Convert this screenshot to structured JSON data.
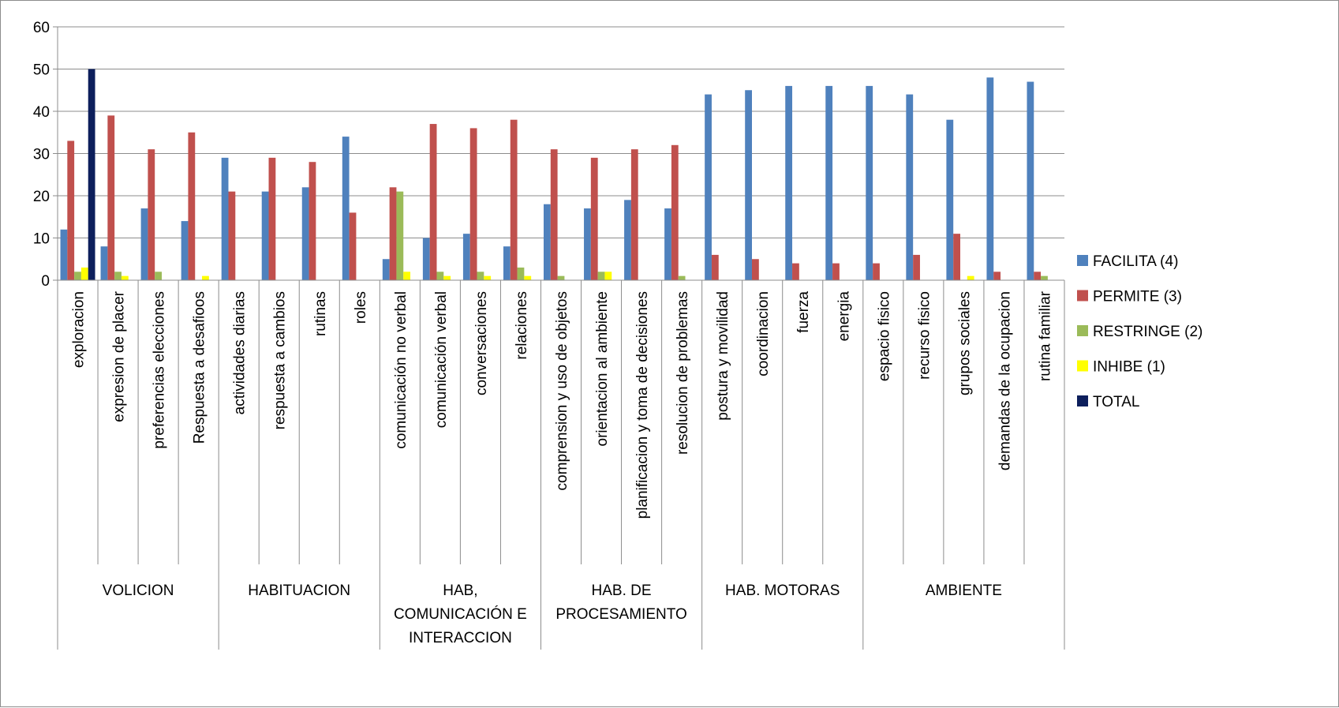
{
  "chart_data": {
    "type": "bar",
    "ylim": [
      0,
      60
    ],
    "yticks": [
      0,
      10,
      20,
      30,
      40,
      50,
      60
    ],
    "grid": true,
    "legend_position": "right",
    "categories": [
      "exploracion",
      "expresion de placer",
      "preferencias elecciones",
      "Respuesta a desafioos",
      "actividades diarias",
      "respuesta a cambios",
      "rutinas",
      "roles",
      "comunicación no verbal",
      "comunicación verbal",
      "conversaciones",
      "relaciones",
      "comprension y uso de objetos",
      "orientacion al ambiente",
      "planificacion y toma de decisiones",
      "resolucion de problemas",
      "postura y movilidad",
      "coordinacion",
      "fuerza",
      "energia",
      "espacio fisico",
      "recurso fisico",
      "grupos sociales",
      "demandas de la ocupacion",
      "rutina familiar"
    ],
    "groups": [
      {
        "label_lines": [
          "VOLICION"
        ],
        "count": 4
      },
      {
        "label_lines": [
          "HABITUACION"
        ],
        "count": 4
      },
      {
        "label_lines": [
          "HAB,",
          "COMUNICACIÓN E",
          "INTERACCION"
        ],
        "count": 4
      },
      {
        "label_lines": [
          "HAB. DE",
          "PROCESAMIENTO"
        ],
        "count": 4
      },
      {
        "label_lines": [
          "HAB. MOTORAS"
        ],
        "count": 4
      },
      {
        "label_lines": [
          "AMBIENTE"
        ],
        "count": 5
      }
    ],
    "series": [
      {
        "name": "FACILITA (4)",
        "color": "#4f81bd",
        "values": [
          12,
          8,
          17,
          14,
          29,
          21,
          22,
          34,
          5,
          10,
          11,
          8,
          18,
          17,
          19,
          17,
          44,
          45,
          46,
          46,
          46,
          44,
          38,
          48,
          47
        ]
      },
      {
        "name": "PERMITE (3)",
        "color": "#c0504d",
        "values": [
          33,
          39,
          31,
          35,
          21,
          29,
          28,
          16,
          22,
          37,
          36,
          38,
          31,
          29,
          31,
          32,
          6,
          5,
          4,
          4,
          4,
          6,
          11,
          2,
          2
        ]
      },
      {
        "name": "RESTRINGE (2)",
        "color": "#9bbb59",
        "values": [
          2,
          2,
          2,
          0,
          0,
          0,
          0,
          0,
          21,
          2,
          2,
          3,
          1,
          2,
          0,
          1,
          0,
          0,
          0,
          0,
          0,
          0,
          0,
          0,
          1
        ]
      },
      {
        "name": "INHIBE (1)",
        "color": "#ffff00",
        "values": [
          3,
          1,
          0,
          1,
          0,
          0,
          0,
          0,
          2,
          1,
          1,
          1,
          0,
          2,
          0,
          0,
          0,
          0,
          0,
          0,
          0,
          0,
          1,
          0,
          0
        ]
      },
      {
        "name": "TOTAL",
        "color": "#0d1f5c",
        "values": [
          50,
          0,
          0,
          0,
          0,
          0,
          0,
          0,
          0,
          0,
          0,
          0,
          0,
          0,
          0,
          0,
          0,
          0,
          0,
          0,
          0,
          0,
          0,
          0,
          0
        ]
      }
    ]
  }
}
